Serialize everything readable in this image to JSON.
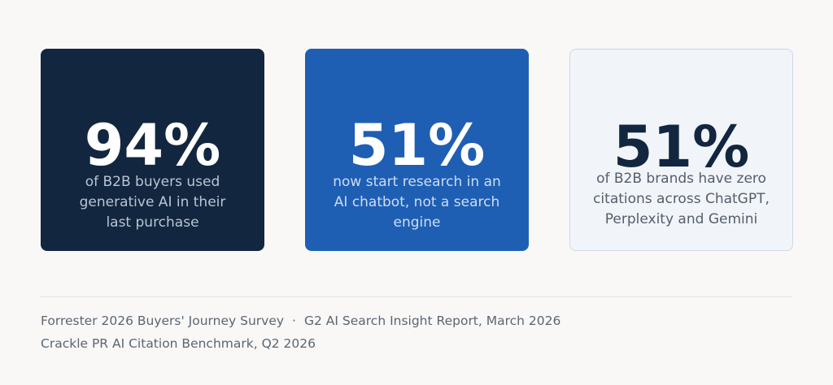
{
  "stats": [
    {
      "value": "94%",
      "description": "of B2B buyers used generative AI in their last purchase"
    },
    {
      "value": "51%",
      "description": "now start research in an AI chatbot, not a search engine"
    },
    {
      "value": "51%",
      "description": "of B2B brands have zero citations across ChatGPT, Perplexity and Gemini"
    }
  ],
  "sources": {
    "line1_a": "Forrester 2026 Buyers' Journey Survey",
    "separator": "·",
    "line1_b": "G2 AI Search Insight Report, March 2026",
    "line2": "Crackle PR AI Citation Benchmark, Q2 2026"
  },
  "colors": {
    "card_dark": "#12263f",
    "card_blue": "#1e5fb4",
    "card_light": "#f1f4f9",
    "background": "#f9f8f7"
  }
}
